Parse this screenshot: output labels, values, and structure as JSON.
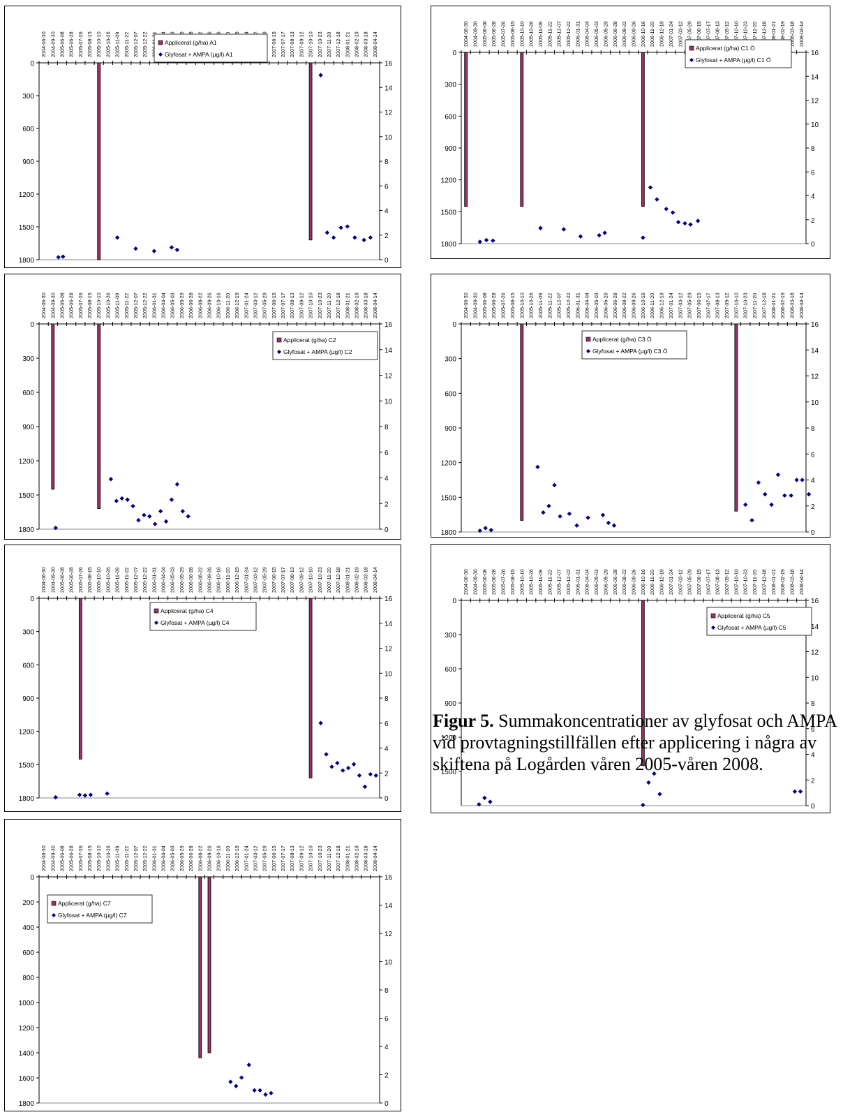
{
  "dates": [
    "2004-06-30",
    "2004-09-30",
    "2005-06-08",
    "2005-06-28",
    "2005-07-26",
    "2005-08-15",
    "2005-10-10",
    "2005-10-26",
    "2005-11-09",
    "2005-11-22",
    "2005-12-07",
    "2005-12-22",
    "2006-01-31",
    "2006-04-04",
    "2006-05-03",
    "2006-05-29",
    "2006-06-28",
    "2006-08-22",
    "2006-09-26",
    "2006-10-16",
    "2006-11-20",
    "2006-12-19",
    "2007-01-24",
    "2007-03-12",
    "2007-05-29",
    "2007-06-15",
    "2007-07-17",
    "2007-08-13",
    "2007-09-12",
    "2007-10-10",
    "2007-10-23",
    "2007-11-20",
    "2007-12-18",
    "2008-01-21",
    "2008-02-19",
    "2008-03-18",
    "2008-04-14"
  ],
  "caption": {
    "label": "Figur 5.",
    "text": " Summakoncentrationer av glyfosat och AMPA vid provtagningstillfällen efter applicering i några av skiftena på Logården våren 2005-våren 2008."
  },
  "colors": {
    "bar": "#993366",
    "bar_edge": "#000000",
    "marker": "#000080"
  },
  "chart_data": [
    {
      "id": "A1",
      "type": "bar+scatter",
      "legend": [
        "Applicerat (g/ha) A1",
        "Glyfosat + AMPA (µg/l) A1"
      ],
      "y_left": {
        "min": 0,
        "max": 1800,
        "ticks": [
          0,
          300,
          600,
          900,
          1200,
          1500,
          1800
        ],
        "inverted": true
      },
      "y_right": {
        "min": 0,
        "max": 16,
        "ticks": [
          0,
          2,
          4,
          6,
          8,
          10,
          12,
          14,
          16
        ]
      },
      "bars": [
        {
          "date": "2005-10-10",
          "value": 1800
        },
        {
          "date": "2007-10-10",
          "value": 1620
        }
      ],
      "points": [
        {
          "x": 2.1,
          "y": 0.2
        },
        {
          "x": 2.6,
          "y": 0.25
        },
        {
          "x": 8.5,
          "y": 1.8
        },
        {
          "x": 10.5,
          "y": 0.9
        },
        {
          "x": 12.5,
          "y": 0.7
        },
        {
          "x": 14.4,
          "y": 1.0
        },
        {
          "x": 15.0,
          "y": 0.8
        },
        {
          "x": 30.6,
          "y": 15.0
        },
        {
          "x": 31.3,
          "y": 2.2
        },
        {
          "x": 32.0,
          "y": 1.8
        },
        {
          "x": 32.8,
          "y": 2.6
        },
        {
          "x": 33.5,
          "y": 2.7
        },
        {
          "x": 34.3,
          "y": 1.8
        },
        {
          "x": 35.3,
          "y": 1.6
        },
        {
          "x": 36.0,
          "y": 1.8
        }
      ]
    },
    {
      "id": "C1 Ö",
      "type": "bar+scatter",
      "legend": [
        "Applicerat (g/ha) C1 Ö",
        "Glyfosat + AMPA (µg/l) C1 Ö"
      ],
      "y_left": {
        "min": 0,
        "max": 1800,
        "ticks": [
          0,
          300,
          600,
          900,
          1200,
          1500,
          1800
        ],
        "inverted": true
      },
      "y_right": {
        "min": 0,
        "max": 16,
        "ticks": [
          0,
          2,
          4,
          6,
          8,
          10,
          12,
          14,
          16
        ]
      },
      "bars": [
        {
          "date": "2004-06-30",
          "value": 1450
        },
        {
          "date": "2005-10-10",
          "value": 1450
        },
        {
          "date": "2006-10-16",
          "value": 1450
        }
      ],
      "points": [
        {
          "x": 2.0,
          "y": 0.15
        },
        {
          "x": 2.7,
          "y": 0.3
        },
        {
          "x": 3.4,
          "y": 0.25
        },
        {
          "x": 8.5,
          "y": 1.3
        },
        {
          "x": 11.0,
          "y": 1.2
        },
        {
          "x": 12.8,
          "y": 0.6
        },
        {
          "x": 14.8,
          "y": 0.7
        },
        {
          "x": 15.4,
          "y": 0.9
        },
        {
          "x": 19.5,
          "y": 0.5
        },
        {
          "x": 20.3,
          "y": 4.7
        },
        {
          "x": 21.0,
          "y": 3.7
        },
        {
          "x": 22.0,
          "y": 2.9
        },
        {
          "x": 22.7,
          "y": 2.6
        },
        {
          "x": 23.3,
          "y": 1.8
        },
        {
          "x": 24.0,
          "y": 1.7
        },
        {
          "x": 24.6,
          "y": 1.6
        },
        {
          "x": 25.4,
          "y": 1.9
        }
      ]
    },
    {
      "id": "C2",
      "type": "bar+scatter",
      "legend": [
        "Applicerat (g/ha) C2",
        "Glyfosat + AMPA (µg/l) C2"
      ],
      "y_left": {
        "min": 0,
        "max": 1800,
        "ticks": [
          0,
          300,
          600,
          900,
          1200,
          1500,
          1800
        ],
        "inverted": true
      },
      "y_right": {
        "min": 0,
        "max": 16,
        "ticks": [
          0,
          2,
          4,
          6,
          8,
          10,
          12,
          14,
          16
        ]
      },
      "bars": [
        {
          "date": "2004-09-30",
          "value": 1450
        },
        {
          "date": "2005-10-10",
          "value": 1620
        }
      ],
      "points": [
        {
          "x": 1.8,
          "y": 0.1
        },
        {
          "x": 7.8,
          "y": 3.9
        },
        {
          "x": 8.4,
          "y": 2.2
        },
        {
          "x": 9.0,
          "y": 2.4
        },
        {
          "x": 9.6,
          "y": 2.3
        },
        {
          "x": 10.2,
          "y": 1.8
        },
        {
          "x": 10.8,
          "y": 0.7
        },
        {
          "x": 11.4,
          "y": 1.1
        },
        {
          "x": 12.0,
          "y": 1.0
        },
        {
          "x": 12.6,
          "y": 0.4
        },
        {
          "x": 13.2,
          "y": 1.4
        },
        {
          "x": 13.8,
          "y": 0.6
        },
        {
          "x": 14.4,
          "y": 2.3
        },
        {
          "x": 15.0,
          "y": 3.5
        },
        {
          "x": 15.6,
          "y": 1.4
        },
        {
          "x": 16.2,
          "y": 1.0
        }
      ]
    },
    {
      "id": "C3 Ö",
      "type": "bar+scatter",
      "legend": [
        "Applicerat (g/ha) C3 Ö",
        "Glyfosat + AMPA (µg/l) C3 Ö"
      ],
      "y_left": {
        "min": 0,
        "max": 1800,
        "ticks": [
          0,
          300,
          600,
          900,
          1200,
          1500,
          1800
        ],
        "inverted": true
      },
      "y_right": {
        "min": 0,
        "max": 16,
        "ticks": [
          0,
          2,
          4,
          6,
          8,
          10,
          12,
          14,
          16
        ]
      },
      "bars": [
        {
          "date": "2005-10-10",
          "value": 1700
        },
        {
          "date": "2007-10-10",
          "value": 1620
        }
      ],
      "points": [
        {
          "x": 2.0,
          "y": 0.1
        },
        {
          "x": 2.6,
          "y": 0.3
        },
        {
          "x": 3.2,
          "y": 0.15
        },
        {
          "x": 8.2,
          "y": 5.0
        },
        {
          "x": 8.8,
          "y": 1.5
        },
        {
          "x": 9.4,
          "y": 2.0
        },
        {
          "x": 10.0,
          "y": 3.6
        },
        {
          "x": 10.6,
          "y": 1.2
        },
        {
          "x": 11.6,
          "y": 1.4
        },
        {
          "x": 12.4,
          "y": 0.5
        },
        {
          "x": 13.6,
          "y": 1.1
        },
        {
          "x": 15.2,
          "y": 1.3
        },
        {
          "x": 15.8,
          "y": 0.7
        },
        {
          "x": 16.4,
          "y": 0.5
        },
        {
          "x": 30.5,
          "y": 2.1
        },
        {
          "x": 31.2,
          "y": 0.9
        },
        {
          "x": 31.9,
          "y": 3.8
        },
        {
          "x": 32.6,
          "y": 2.9
        },
        {
          "x": 33.3,
          "y": 2.1
        },
        {
          "x": 34.0,
          "y": 4.4
        },
        {
          "x": 34.7,
          "y": 2.8
        },
        {
          "x": 35.4,
          "y": 2.8
        },
        {
          "x": 36.0,
          "y": 4.0
        },
        {
          "x": 36.6,
          "y": 4.0
        },
        {
          "x": 37.3,
          "y": 2.9
        }
      ]
    },
    {
      "id": "C4",
      "type": "bar+scatter",
      "legend": [
        "Applicerat (g/ha) C4",
        "Glyfosat + AMPA (µg/l) C4"
      ],
      "y_left": {
        "min": 0,
        "max": 1800,
        "ticks": [
          0,
          300,
          600,
          900,
          1200,
          1500,
          1800
        ],
        "inverted": true
      },
      "y_right": {
        "min": 0,
        "max": 16,
        "ticks": [
          0,
          2,
          4,
          6,
          8,
          10,
          12,
          14,
          16
        ]
      },
      "bars": [
        {
          "date": "2005-07-26",
          "value": 1450
        },
        {
          "date": "2007-10-10",
          "value": 1620
        }
      ],
      "points": [
        {
          "x": 1.8,
          "y": 0.05
        },
        {
          "x": 4.4,
          "y": 0.25
        },
        {
          "x": 5.0,
          "y": 0.2
        },
        {
          "x": 5.6,
          "y": 0.25
        },
        {
          "x": 7.4,
          "y": 0.35
        },
        {
          "x": 30.6,
          "y": 6.0
        },
        {
          "x": 31.2,
          "y": 3.5
        },
        {
          "x": 31.8,
          "y": 2.5
        },
        {
          "x": 32.4,
          "y": 2.8
        },
        {
          "x": 33.0,
          "y": 2.2
        },
        {
          "x": 33.6,
          "y": 2.4
        },
        {
          "x": 34.2,
          "y": 2.7
        },
        {
          "x": 34.8,
          "y": 1.8
        },
        {
          "x": 35.4,
          "y": 0.9
        },
        {
          "x": 36.0,
          "y": 1.9
        },
        {
          "x": 36.6,
          "y": 1.8
        }
      ]
    },
    {
      "id": "C5",
      "type": "bar+scatter",
      "legend": [
        "Applicerat (g/ha) C5",
        "Glyfosat + AMPA (µg/l) C5"
      ],
      "y_left": {
        "min": 0,
        "max": 1800,
        "ticks": [
          0,
          300,
          600,
          900,
          1200,
          1500
        ],
        "inverted": true
      },
      "y_right": {
        "min": 0,
        "max": 16,
        "ticks": [
          0,
          2,
          4,
          6,
          8,
          10,
          12,
          14,
          16
        ]
      },
      "bars": [
        {
          "date": "2006-10-16",
          "value": 1450
        }
      ],
      "points": [
        {
          "x": 1.9,
          "y": 0.1
        },
        {
          "x": 2.5,
          "y": 0.6
        },
        {
          "x": 3.1,
          "y": 0.3
        },
        {
          "x": 19.5,
          "y": 0.05
        },
        {
          "x": 20.1,
          "y": 1.8
        },
        {
          "x": 20.7,
          "y": 2.5
        },
        {
          "x": 21.3,
          "y": 0.9
        },
        {
          "x": 35.8,
          "y": 1.1
        },
        {
          "x": 36.4,
          "y": 1.1
        }
      ]
    },
    {
      "id": "C7",
      "type": "bar+scatter",
      "legend": [
        "Applicerat (g/ha) C7",
        "Glyfosat + AMPA (µg/l) C7"
      ],
      "y_left": {
        "min": 0,
        "max": 1800,
        "ticks": [
          0,
          200,
          400,
          600,
          800,
          1000,
          1200,
          1400,
          1600,
          1800
        ],
        "inverted": true
      },
      "y_right": {
        "min": 0,
        "max": 16,
        "ticks": [
          0,
          2,
          4,
          6,
          8,
          10,
          12,
          14,
          16
        ]
      },
      "bars": [
        {
          "date": "2006-08-22",
          "value": 1440
        },
        {
          "date": "2006-09-26",
          "value": 1400
        }
      ],
      "points": [
        {
          "x": 20.8,
          "y": 1.5
        },
        {
          "x": 21.4,
          "y": 1.2
        },
        {
          "x": 22.0,
          "y": 1.8
        },
        {
          "x": 22.8,
          "y": 2.7
        },
        {
          "x": 23.4,
          "y": 0.9
        },
        {
          "x": 24.0,
          "y": 0.9
        },
        {
          "x": 24.6,
          "y": 0.6
        },
        {
          "x": 25.2,
          "y": 0.7
        }
      ]
    }
  ]
}
